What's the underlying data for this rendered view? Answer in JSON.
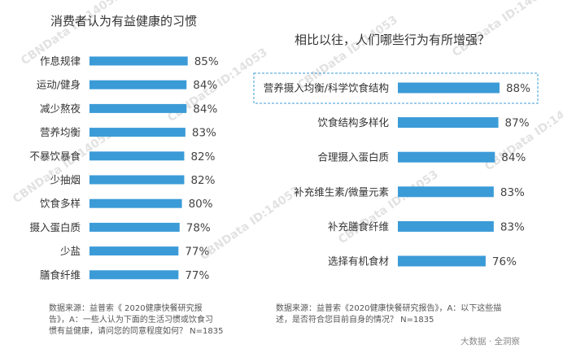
{
  "watermark": "CBNData ID:14053",
  "brand": "大数据 · 全洞察",
  "chart_data": [
    {
      "type": "bar",
      "orientation": "horizontal",
      "title": "消费者认为有益健康的习惯",
      "categories": [
        "作息规律",
        "运动/健身",
        "减少熬夜",
        "营养均衡",
        "不暴饮暴食",
        "少抽烟",
        "饮食多样",
        "摄入蛋白质",
        "少盐",
        "膳食纤维"
      ],
      "values": [
        85,
        84,
        84,
        83,
        82,
        82,
        80,
        78,
        77,
        77
      ],
      "value_labels": [
        "85%",
        "84%",
        "84%",
        "83%",
        "82%",
        "82%",
        "80%",
        "78%",
        "77%",
        "77%"
      ],
      "bar_color": "#3b9bd7",
      "source_lines": [
        "数据来源：益普索《 2020健康快餐研究报",
        "告》，A：一些人认为下面的生活习惯或饮食习",
        "惯有益健康，请问您的同意程度如何？ N=1835"
      ]
    },
    {
      "type": "bar",
      "orientation": "horizontal",
      "title": "相比以往，人们哪些行为有所增强？",
      "categories": [
        "营养摄入均衡/科学饮食结构",
        "饮食结构多样化",
        "合理摄入蛋白质",
        "补充维生素/微量元素",
        "补充膳食纤维",
        "选择有机食材"
      ],
      "values": [
        88,
        87,
        84,
        83,
        83,
        76
      ],
      "value_labels": [
        "88%",
        "87%",
        "84%",
        "83%",
        "83%",
        "76%"
      ],
      "bar_color": "#3b9bd7",
      "highlight_index": 0,
      "highlight_color": "#3b9bd7",
      "source_lines": [
        "数据来源：益普索《2020健康快餐研究报告》，A：以下这些描",
        "述，是否符合您目前自身的情况？ N=1835"
      ]
    }
  ]
}
